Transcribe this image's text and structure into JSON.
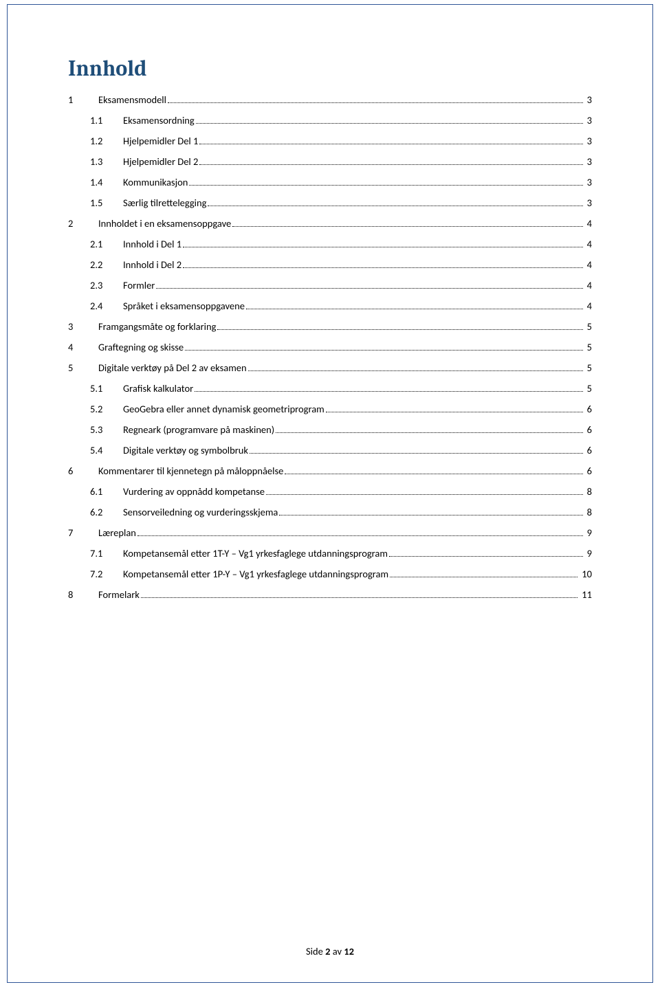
{
  "title": "Innhold",
  "toc": [
    {
      "level": 0,
      "num": "1",
      "text": "Eksamensmodell",
      "page": "3"
    },
    {
      "level": 1,
      "num": "1.1",
      "text": "Eksamensordning",
      "page": "3"
    },
    {
      "level": 1,
      "num": "1.2",
      "text": "Hjelpemidler Del 1",
      "page": "3"
    },
    {
      "level": 1,
      "num": "1.3",
      "text": "Hjelpemidler Del 2",
      "page": "3"
    },
    {
      "level": 1,
      "num": "1.4",
      "text": "Kommunikasjon",
      "page": "3"
    },
    {
      "level": 1,
      "num": "1.5",
      "text": "Særlig tilrettelegging",
      "page": "3"
    },
    {
      "level": 0,
      "num": "2",
      "text": "Innholdet i en eksamensoppgave",
      "page": "4"
    },
    {
      "level": 1,
      "num": "2.1",
      "text": "Innhold i Del 1",
      "page": "4"
    },
    {
      "level": 1,
      "num": "2.2",
      "text": "Innhold i Del 2",
      "page": "4"
    },
    {
      "level": 1,
      "num": "2.3",
      "text": "Formler",
      "page": "4"
    },
    {
      "level": 1,
      "num": "2.4",
      "text": "Språket i eksamensoppgavene",
      "page": "4"
    },
    {
      "level": 0,
      "num": "3",
      "text": "Framgangsmåte og forklaring",
      "page": "5"
    },
    {
      "level": 0,
      "num": "4",
      "text": "Graftegning og skisse",
      "page": "5"
    },
    {
      "level": 0,
      "num": "5",
      "text": "Digitale verktøy på Del 2 av eksamen",
      "page": "5"
    },
    {
      "level": 1,
      "num": "5.1",
      "text": "Grafisk kalkulator",
      "page": "5"
    },
    {
      "level": 1,
      "num": "5.2",
      "text": "GeoGebra eller annet dynamisk geometriprogram",
      "page": "6"
    },
    {
      "level": 1,
      "num": "5.3",
      "text": "Regneark (programvare på maskinen)",
      "page": "6"
    },
    {
      "level": 1,
      "num": "5.4",
      "text": "Digitale verktøy og symbolbruk",
      "page": "6"
    },
    {
      "level": 0,
      "num": "6",
      "text": "Kommentarer til kjennetegn på måloppnåelse",
      "page": "6"
    },
    {
      "level": 1,
      "num": "6.1",
      "text": "Vurdering av oppnådd kompetanse",
      "page": "8"
    },
    {
      "level": 1,
      "num": "6.2",
      "text": "Sensorveiledning og vurderingsskjema",
      "page": "8"
    },
    {
      "level": 0,
      "num": "7",
      "text": "Læreplan",
      "page": "9"
    },
    {
      "level": 1,
      "num": "7.1",
      "text": "Kompetansemål etter 1T-Y – Vg1 yrkesfaglege utdanningsprogram",
      "page": "9"
    },
    {
      "level": 1,
      "num": "7.2",
      "text": "Kompetansemål etter 1P-Y – Vg1 yrkesfaglege utdanningsprogram",
      "page": "10"
    },
    {
      "level": 0,
      "num": "8",
      "text": "Formelark",
      "page": "11"
    }
  ],
  "footer_prefix": "Side ",
  "footer_page": "2",
  "footer_of": " av ",
  "footer_total": "12"
}
